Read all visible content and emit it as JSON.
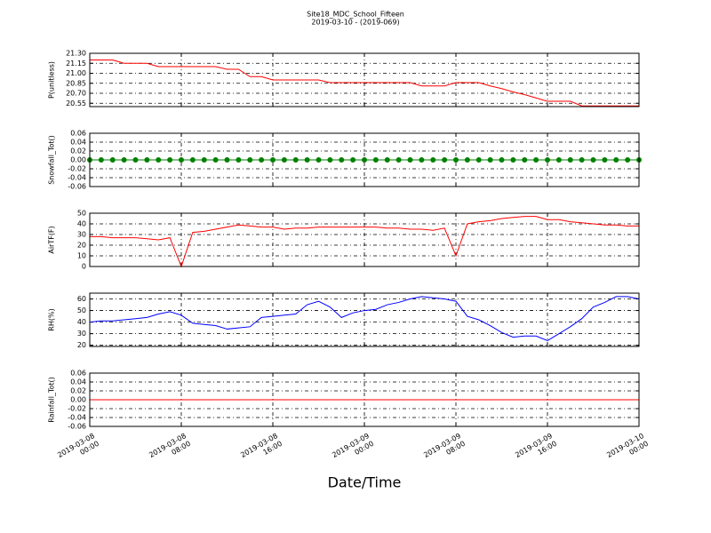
{
  "chart_data": {
    "type": "multi",
    "title": "Site18_MDC_School_Fifteen",
    "subtitle": "2019-03-10 - (2019-069)",
    "xlabel": "Date/Time",
    "grid": true,
    "x": [
      "2019-03-08 00:00",
      "2019-03-08 01:00",
      "2019-03-08 02:00",
      "2019-03-08 03:00",
      "2019-03-08 04:00",
      "2019-03-08 05:00",
      "2019-03-08 06:00",
      "2019-03-08 07:00",
      "2019-03-08 08:00",
      "2019-03-08 09:00",
      "2019-03-08 10:00",
      "2019-03-08 11:00",
      "2019-03-08 12:00",
      "2019-03-08 13:00",
      "2019-03-08 14:00",
      "2019-03-08 15:00",
      "2019-03-08 16:00",
      "2019-03-08 17:00",
      "2019-03-08 18:00",
      "2019-03-08 19:00",
      "2019-03-08 20:00",
      "2019-03-08 21:00",
      "2019-03-08 22:00",
      "2019-03-08 23:00",
      "2019-03-09 00:00",
      "2019-03-09 01:00",
      "2019-03-09 02:00",
      "2019-03-09 03:00",
      "2019-03-09 04:00",
      "2019-03-09 05:00",
      "2019-03-09 06:00",
      "2019-03-09 07:00",
      "2019-03-09 08:00",
      "2019-03-09 09:00",
      "2019-03-09 10:00",
      "2019-03-09 11:00",
      "2019-03-09 12:00",
      "2019-03-09 13:00",
      "2019-03-09 14:00",
      "2019-03-09 15:00",
      "2019-03-09 16:00",
      "2019-03-09 17:00",
      "2019-03-09 18:00",
      "2019-03-09 19:00",
      "2019-03-09 20:00",
      "2019-03-09 21:00",
      "2019-03-09 22:00",
      "2019-03-09 23:00",
      "2019-03-10 00:00"
    ],
    "xlim": [
      "2019-03-08 00:00",
      "2019-03-10 00:00"
    ],
    "xticks": [
      {
        "value": "2019-03-08 00:00",
        "label": "2019-03-08\n00:00"
      },
      {
        "value": "2019-03-08 08:00",
        "label": "2019-03-08\n08:00"
      },
      {
        "value": "2019-03-08 16:00",
        "label": "2019-03-08\n16:00"
      },
      {
        "value": "2019-03-09 00:00",
        "label": "2019-03-09\n00:00"
      },
      {
        "value": "2019-03-09 08:00",
        "label": "2019-03-09\n08:00"
      },
      {
        "value": "2019-03-09 16:00",
        "label": "2019-03-09\n16:00"
      },
      {
        "value": "2019-03-10 00:00",
        "label": "2019-03-10\n00:00"
      }
    ],
    "panels": [
      {
        "type": "line",
        "ylabel": "P(unitless)",
        "ylim": [
          20.5,
          21.3
        ],
        "yticks": [
          20.55,
          {
            "value": 20.7,
            "label": "20.70"
          },
          20.85,
          {
            "value": 21.0,
            "label": "21.00"
          },
          21.15,
          {
            "value": 21.3,
            "label": "21.30"
          }
        ],
        "series": [
          {
            "color": "#ff0000",
            "values": [
              21.2,
              21.2,
              21.2,
              21.15,
              21.15,
              21.15,
              21.1,
              21.1,
              21.1,
              21.1,
              21.1,
              21.1,
              21.06,
              21.06,
              20.95,
              20.95,
              20.9,
              20.9,
              20.9,
              20.9,
              20.9,
              20.86,
              20.86,
              20.86,
              20.86,
              20.86,
              20.86,
              20.86,
              20.86,
              20.81,
              20.81,
              20.81,
              20.86,
              20.86,
              20.86,
              20.81,
              20.77,
              20.72,
              20.68,
              20.63,
              20.58,
              20.58,
              20.58,
              20.51,
              20.51,
              20.51,
              20.51,
              20.51,
              20.51
            ]
          }
        ]
      },
      {
        "type": "line",
        "ylabel": "Snowfall_Tot()",
        "ylim": [
          -0.06,
          0.06
        ],
        "marker": true,
        "yticks": [
          -0.06,
          -0.04,
          -0.02,
          {
            "value": 0,
            "label": "0.00"
          },
          0.02,
          0.04,
          0.06
        ],
        "series": [
          {
            "color": "#008000",
            "values": [
              0,
              0,
              0,
              0,
              0,
              0,
              0,
              0,
              0,
              0,
              0,
              0,
              0,
              0,
              0,
              0,
              0,
              0,
              0,
              0,
              0,
              0,
              0,
              0,
              0,
              0,
              0,
              0,
              0,
              0,
              0,
              0,
              0,
              0,
              0,
              0,
              0,
              0,
              0,
              0,
              0,
              0,
              0,
              0,
              0,
              0,
              0,
              0,
              0
            ]
          }
        ]
      },
      {
        "type": "line",
        "ylabel": "AirTF(F)",
        "ylim": [
          0,
          50
        ],
        "yticks": [
          0,
          10,
          20,
          30,
          40,
          50
        ],
        "series": [
          {
            "color": "#ff0000",
            "values": [
              28,
              28,
              27,
              27,
              27,
              26,
              25,
              27,
              0,
              32,
              33,
              35,
              37,
              39,
              38,
              37,
              37,
              35,
              36,
              36,
              37,
              37,
              37,
              37,
              37,
              37,
              36,
              36,
              35,
              35,
              34,
              36,
              10,
              40,
              42,
              43,
              45,
              46,
              47,
              47,
              44,
              44,
              42,
              41,
              40,
              39,
              39,
              38,
              38
            ]
          }
        ]
      },
      {
        "type": "line",
        "ylabel": "RH(%)",
        "ylim": [
          19,
          65
        ],
        "yticks": [
          20,
          30,
          40,
          50,
          60
        ],
        "series": [
          {
            "color": "#0000ff",
            "values": [
              40,
              41,
              41,
              42,
              43,
              44,
              47,
              49,
              46,
              39,
              38,
              37,
              34,
              35,
              36,
              44,
              45,
              46,
              47,
              55,
              58,
              53,
              44,
              48,
              50,
              51,
              55,
              57,
              60,
              62,
              61,
              60,
              58,
              45,
              42,
              37,
              31,
              27,
              28,
              28,
              24,
              30,
              36,
              43,
              53,
              57,
              62,
              62,
              60
            ]
          }
        ]
      },
      {
        "type": "line",
        "ylabel": "Rainfall_Tot()",
        "ylim": [
          -0.06,
          0.06
        ],
        "yticks": [
          -0.06,
          -0.04,
          -0.02,
          {
            "value": 0,
            "label": "0.00"
          },
          0.02,
          0.04,
          0.06
        ],
        "series": [
          {
            "color": "#ff0000",
            "values": [
              0,
              0,
              0,
              0,
              0,
              0,
              0,
              0,
              0,
              0,
              0,
              0,
              0,
              0,
              0,
              0,
              0,
              0,
              0,
              0,
              0,
              0,
              0,
              0,
              0,
              0,
              0,
              0,
              0,
              0,
              0,
              0,
              0,
              0,
              0,
              0,
              0,
              0,
              0,
              0,
              0,
              0,
              0,
              0,
              0,
              0,
              0,
              0,
              0
            ]
          }
        ]
      }
    ]
  }
}
